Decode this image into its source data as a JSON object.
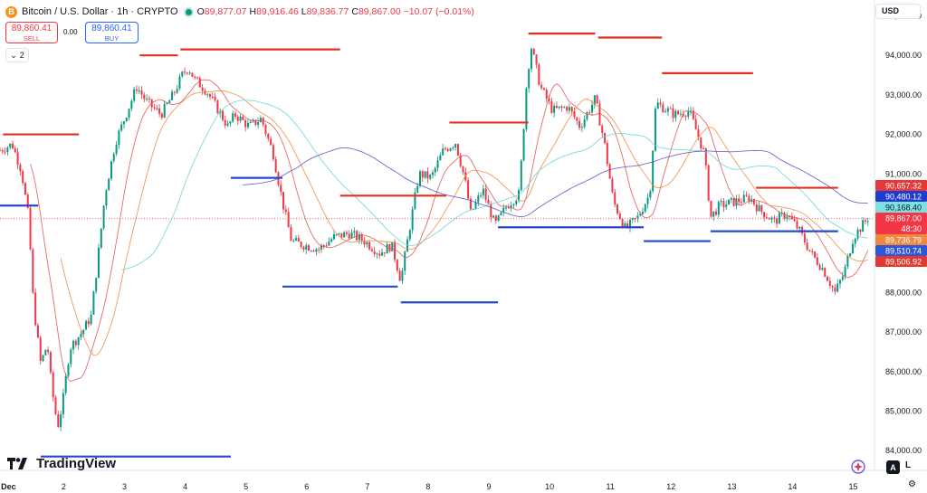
{
  "header": {
    "icon_letter": "B",
    "title": "Bitcoin / U.S. Dollar · 1h · CRYPTO",
    "o_label": "O",
    "o_value": "89,877.07",
    "h_label": "H",
    "h_value": "89,916.46",
    "l_label": "L",
    "l_value": "89,836.77",
    "c_label": "C",
    "c_value": "89,867.00",
    "change": "−10.07 (−0.01%)"
  },
  "trade": {
    "sell_price": "89,860.41",
    "sell_label": "SELL",
    "spread": "0.00",
    "buy_price": "89,860.41",
    "buy_label": "BUY"
  },
  "indicators": {
    "count": "2"
  },
  "currency": "USD",
  "branding": {
    "logo_text": "TradingView"
  },
  "controls": {
    "auto_label": "A",
    "log_label": "L"
  },
  "colors": {
    "up": "#089981",
    "down": "#f23645",
    "resistance": "#e1301f",
    "support": "#2948c7"
  },
  "chart_data": {
    "type": "candlestick",
    "title": "Bitcoin / U.S. Dollar · 1h · CRYPTO",
    "x_ticks": [
      "Dec",
      "2",
      "3",
      "4",
      "5",
      "6",
      "7",
      "8",
      "9",
      "10",
      "11",
      "12",
      "13",
      "14",
      "15"
    ],
    "x_range_days": [
      0.95,
      15.35
    ],
    "y_ticks": [
      "95,000.00",
      "94,000.00",
      "93,000.00",
      "92,000.00",
      "91,000.00",
      "90,000.00",
      "89,000.00",
      "88,000.00",
      "87,000.00",
      "86,000.00",
      "85,000.00",
      "84,000.00"
    ],
    "y_values": [
      95000,
      94000,
      93000,
      92000,
      91000,
      90000,
      89000,
      88000,
      87000,
      86000,
      85000,
      84000
    ],
    "ylim": [
      83500,
      95400
    ],
    "current_price": 89867.0,
    "current_price_label": "89,867.00",
    "countdown": "48:30",
    "price_path": [
      [
        0.95,
        91600
      ],
      [
        1.15,
        91750
      ],
      [
        1.3,
        91100
      ],
      [
        1.42,
        89900
      ],
      [
        1.5,
        87700
      ],
      [
        1.62,
        86200
      ],
      [
        1.73,
        86700
      ],
      [
        1.8,
        85600
      ],
      [
        1.9,
        84600
      ],
      [
        1.98,
        85200
      ],
      [
        2.1,
        86600
      ],
      [
        2.3,
        87000
      ],
      [
        2.45,
        87400
      ],
      [
        2.55,
        88700
      ],
      [
        2.68,
        90500
      ],
      [
        2.85,
        91800
      ],
      [
        3.05,
        92600
      ],
      [
        3.2,
        93200
      ],
      [
        3.38,
        92800
      ],
      [
        3.6,
        92500
      ],
      [
        3.8,
        93000
      ],
      [
        3.95,
        93500
      ],
      [
        4.05,
        93700
      ],
      [
        4.15,
        93400
      ],
      [
        4.35,
        93100
      ],
      [
        4.55,
        92600
      ],
      [
        4.7,
        92200
      ],
      [
        4.82,
        92500
      ],
      [
        5.05,
        92200
      ],
      [
        5.25,
        92400
      ],
      [
        5.45,
        91500
      ],
      [
        5.6,
        90300
      ],
      [
        5.75,
        89300
      ],
      [
        5.95,
        89200
      ],
      [
        6.2,
        89100
      ],
      [
        6.45,
        89400
      ],
      [
        6.7,
        89500
      ],
      [
        6.95,
        89300
      ],
      [
        7.2,
        89000
      ],
      [
        7.4,
        89200
      ],
      [
        7.55,
        88300
      ],
      [
        7.68,
        89500
      ],
      [
        7.85,
        91000
      ],
      [
        8.05,
        90900
      ],
      [
        8.25,
        91600
      ],
      [
        8.45,
        91800
      ],
      [
        8.6,
        90900
      ],
      [
        8.7,
        90000
      ],
      [
        8.9,
        90600
      ],
      [
        9.1,
        89700
      ],
      [
        9.3,
        90200
      ],
      [
        9.5,
        90500
      ],
      [
        9.63,
        93500
      ],
      [
        9.7,
        94200
      ],
      [
        9.85,
        93200
      ],
      [
        10.05,
        92600
      ],
      [
        10.3,
        92700
      ],
      [
        10.5,
        92200
      ],
      [
        10.75,
        92900
      ],
      [
        10.9,
        91800
      ],
      [
        11.05,
        90300
      ],
      [
        11.25,
        89600
      ],
      [
        11.45,
        89900
      ],
      [
        11.65,
        90500
      ],
      [
        11.75,
        92800
      ],
      [
        11.85,
        92700
      ],
      [
        12.05,
        92500
      ],
      [
        12.3,
        92600
      ],
      [
        12.55,
        91500
      ],
      [
        12.65,
        89900
      ],
      [
        12.8,
        90200
      ],
      [
        13.05,
        90300
      ],
      [
        13.3,
        90400
      ],
      [
        13.45,
        90100
      ],
      [
        13.7,
        89800
      ],
      [
        13.9,
        90000
      ],
      [
        14.1,
        89600
      ],
      [
        14.3,
        89000
      ],
      [
        14.5,
        88600
      ],
      [
        14.7,
        88000
      ],
      [
        14.85,
        88500
      ],
      [
        15.0,
        89400
      ],
      [
        15.25,
        89900
      ]
    ],
    "moving_averages": [
      {
        "color": "#e05050",
        "values": [
          90657.32
        ],
        "label": "90,657.32"
      },
      {
        "color": "#1e3ccf",
        "values": [
          90480.12
        ],
        "label": "90,480.12"
      },
      {
        "color": "#5fd6d6",
        "values": [
          90168.4
        ],
        "label": "90,168.40"
      },
      {
        "color": "#f0883e",
        "values": [
          89736.79
        ],
        "label": "89,736.79"
      },
      {
        "color": "#2f56d9",
        "values": [
          89510.74
        ],
        "label": "89,510.74"
      },
      {
        "color": "#e0392f",
        "values": [
          89506.92
        ],
        "label": "89,506.92"
      }
    ],
    "resistance_levels": [
      {
        "from": 1.0,
        "to": 2.25,
        "price": 92000
      },
      {
        "from": 3.25,
        "to": 3.88,
        "price": 94000
      },
      {
        "from": 3.92,
        "to": 6.55,
        "price": 94150
      },
      {
        "from": 6.55,
        "to": 8.3,
        "price": 90450
      },
      {
        "from": 8.35,
        "to": 9.65,
        "price": 92300
      },
      {
        "from": 9.65,
        "to": 10.75,
        "price": 94550
      },
      {
        "from": 10.8,
        "to": 11.85,
        "price": 94450
      },
      {
        "from": 11.85,
        "to": 13.35,
        "price": 93550
      },
      {
        "from": 13.4,
        "to": 14.75,
        "price": 90650
      }
    ],
    "support_levels": [
      {
        "from": 0.95,
        "to": 1.58,
        "price": 90200
      },
      {
        "from": 1.62,
        "to": 4.75,
        "price": 83850
      },
      {
        "from": 4.75,
        "to": 5.6,
        "price": 90900
      },
      {
        "from": 5.6,
        "to": 7.5,
        "price": 88150
      },
      {
        "from": 7.55,
        "to": 9.15,
        "price": 87750
      },
      {
        "from": 9.15,
        "to": 11.55,
        "price": 89650
      },
      {
        "from": 11.55,
        "to": 12.65,
        "price": 89300
      },
      {
        "from": 12.65,
        "to": 14.75,
        "price": 89550
      }
    ]
  }
}
